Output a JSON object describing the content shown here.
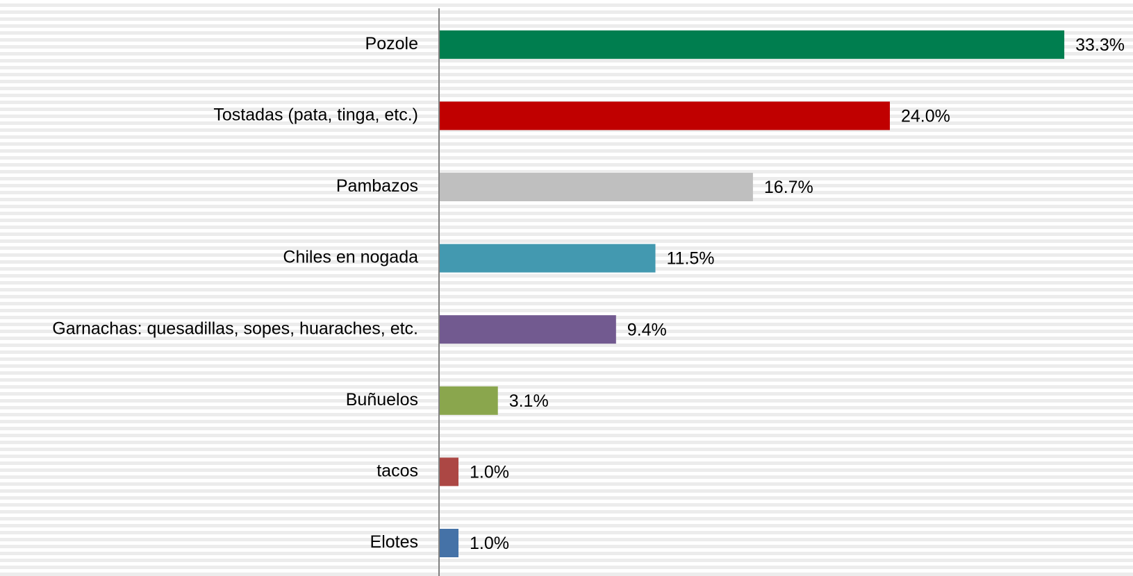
{
  "chart_data": {
    "type": "bar",
    "orientation": "horizontal",
    "categories": [
      "Pozole",
      "Tostadas (pata, tinga, etc.)",
      "Pambazos",
      "Chiles en nogada",
      "Garnachas: quesadillas, sopes, huaraches, etc.",
      "Buñuelos",
      "tacos",
      "Elotes"
    ],
    "values": [
      33.3,
      24.0,
      16.7,
      11.5,
      9.4,
      3.1,
      1.0,
      1.0
    ],
    "value_labels": [
      "33.3%",
      "24.0%",
      "16.7%",
      "11.5%",
      "9.4%",
      "3.1%",
      "1.0%",
      "1.0%"
    ],
    "colors": [
      "#007e4f",
      "#c00000",
      "#bfbfbf",
      "#4399b0",
      "#725a90",
      "#8aa64d",
      "#ac4744",
      "#4572a7"
    ]
  }
}
